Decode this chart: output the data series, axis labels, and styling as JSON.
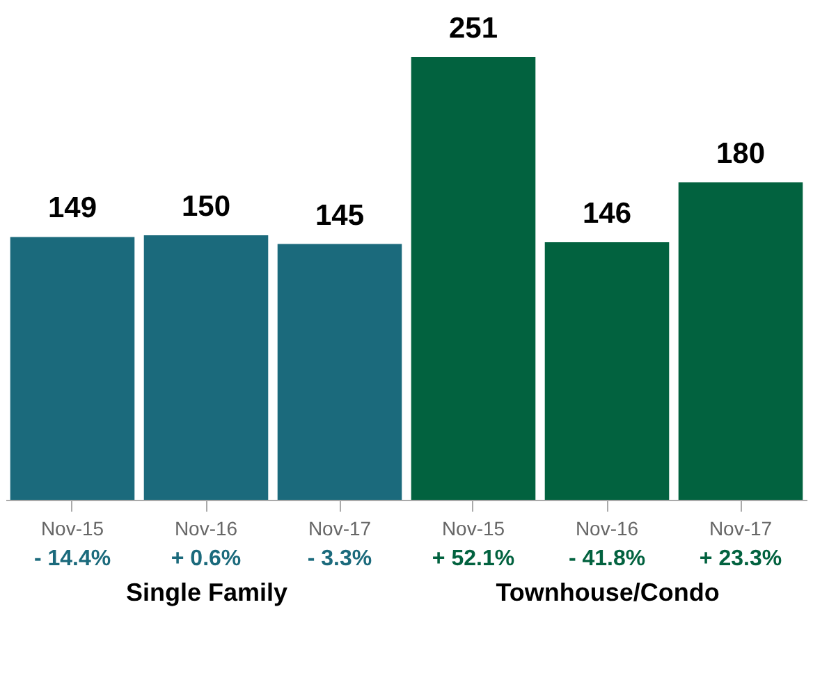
{
  "chart_data": [
    {
      "type": "bar",
      "xlabel": "Single Family",
      "categories": [
        "Nov-15",
        "Nov-16",
        "Nov-17"
      ],
      "values": [
        149,
        150,
        145
      ],
      "color": "#1b6a7c",
      "data_labels": true,
      "annotations": [
        "- 14.4%",
        "+ 0.6%",
        "- 3.3%"
      ]
    },
    {
      "type": "bar",
      "xlabel": "Townhouse/Condo",
      "categories": [
        "Nov-15",
        "Nov-16",
        "Nov-17"
      ],
      "values": [
        251,
        146,
        180
      ],
      "color": "#02623f",
      "data_labels": true,
      "annotations": [
        "+ 52.1%",
        "- 41.8%",
        "+ 23.3%"
      ]
    }
  ]
}
